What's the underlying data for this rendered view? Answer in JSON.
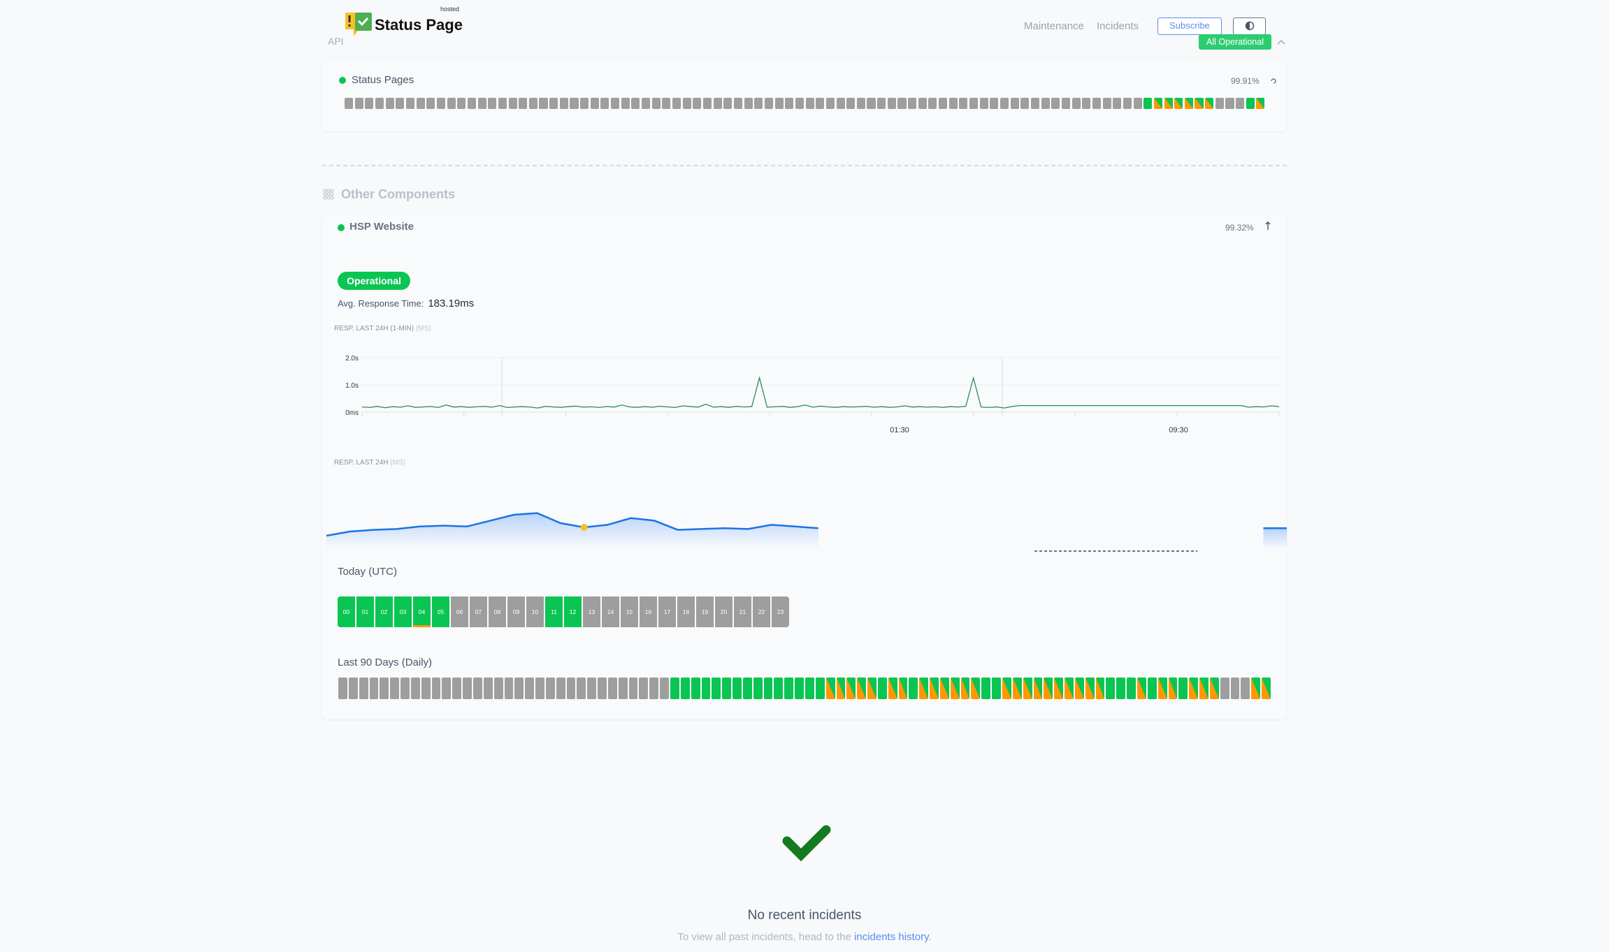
{
  "header": {
    "brand": "Status Page",
    "brand_tag": "hosted",
    "api_link": "API",
    "nav": [
      "Maintenance",
      "Incidents"
    ],
    "subscribe_label": "Subscribe",
    "theme_icon": "half-circle-icon",
    "overall_status": "All Operational"
  },
  "colors": {
    "operational": "#0bc552",
    "degraded": "#ff9800",
    "no_data": "#9e9e9e",
    "accent": "#5b8def"
  },
  "status_pages": {
    "name": "Status Pages",
    "uptime": "99.91%",
    "days": "ggggggggggggggggggggggggggggggggggggggggggggggggggggggggggggggggggggggggggggggGOOOOOOgggGO"
  },
  "other_components": {
    "label": "Other Components",
    "hsp": {
      "name": "HSP Website",
      "uptime": "99.32%",
      "status": "Operational",
      "avg_label": "Avg. Response Time:",
      "avg_value": "183.19ms",
      "chart1_label": "RESP. LAST 24H (1-MIN)",
      "chart1_unit": "(MS)",
      "chart2_label": "RESP. LAST 24H",
      "chart2_unit": "(MS)",
      "today_label": "Today (UTC)",
      "hours": [
        {
          "h": "00",
          "s": "G"
        },
        {
          "h": "01",
          "s": "G"
        },
        {
          "h": "02",
          "s": "G"
        },
        {
          "h": "03",
          "s": "G"
        },
        {
          "h": "04",
          "s": "G",
          "warn": true
        },
        {
          "h": "05",
          "s": "G"
        },
        {
          "h": "06",
          "s": "g"
        },
        {
          "h": "07",
          "s": "g"
        },
        {
          "h": "08",
          "s": "g"
        },
        {
          "h": "09",
          "s": "g"
        },
        {
          "h": "10",
          "s": "g"
        },
        {
          "h": "11",
          "s": "G"
        },
        {
          "h": "12",
          "s": "G"
        },
        {
          "h": "13",
          "s": "g"
        },
        {
          "h": "14",
          "s": "g"
        },
        {
          "h": "15",
          "s": "g"
        },
        {
          "h": "16",
          "s": "g"
        },
        {
          "h": "17",
          "s": "g"
        },
        {
          "h": "18",
          "s": "g"
        },
        {
          "h": "19",
          "s": "g"
        },
        {
          "h": "20",
          "s": "g"
        },
        {
          "h": "21",
          "s": "g"
        },
        {
          "h": "22",
          "s": "g"
        },
        {
          "h": "23",
          "s": "g"
        }
      ],
      "days_label": "Last 90 Days (Daily)",
      "days": "ggggggggggggggggggggggggggggggggGGGGGGGGGGGGGGGOOOOOGOOGOOOOOOGGOOOOOOOOOOGGGOGOOGOOOgggOO"
    }
  },
  "chart_data": [
    {
      "type": "line",
      "yticks": [
        "0ms",
        "1.0s",
        "2.0s"
      ],
      "ylim": [
        0,
        2000
      ],
      "xticks": [
        "01:30",
        "09:30"
      ],
      "values": [
        190,
        170,
        210,
        160,
        200,
        180,
        230,
        175,
        190,
        205,
        170,
        260,
        185,
        200,
        175,
        195,
        210,
        180,
        240,
        170,
        190,
        200,
        185,
        150,
        210,
        190,
        175,
        200,
        220,
        180,
        195,
        170,
        205,
        185,
        260,
        190,
        175,
        200,
        180,
        215,
        190,
        170,
        230,
        200,
        185,
        290,
        180,
        200,
        175,
        210,
        190,
        200,
        1260,
        180,
        195,
        210,
        175,
        200,
        260,
        180,
        220,
        190,
        175,
        200,
        185,
        195,
        210,
        180,
        200,
        175,
        190,
        230,
        185,
        200,
        180,
        195,
        175,
        200,
        185,
        210,
        1250,
        185,
        170,
        190,
        150,
        200,
        240,
        240,
        240,
        240,
        240,
        240,
        240,
        240,
        240,
        240,
        240,
        240,
        240,
        240,
        240,
        240,
        240,
        240,
        240,
        240,
        240,
        240,
        240,
        240,
        240,
        240,
        240,
        240,
        240,
        240,
        180,
        200,
        190,
        230,
        200
      ]
    },
    {
      "type": "area",
      "values": [
        165,
        170,
        172,
        173,
        176,
        177,
        176,
        183,
        190,
        192,
        180,
        175,
        178,
        186,
        183,
        172,
        173,
        174,
        173,
        178,
        176,
        174,
        null,
        null,
        null,
        null,
        null,
        null,
        null,
        null,
        null,
        null,
        null,
        null,
        null,
        null,
        null,
        null,
        null,
        null,
        174,
        174
      ],
      "highlight_index": 11,
      "highlight_color": "#f6c026"
    }
  ],
  "incidents": {
    "title": "No recent incidents",
    "sub_prefix": "To view all past incidents, head to the ",
    "link": "incidents history",
    "sub_suffix": "."
  }
}
